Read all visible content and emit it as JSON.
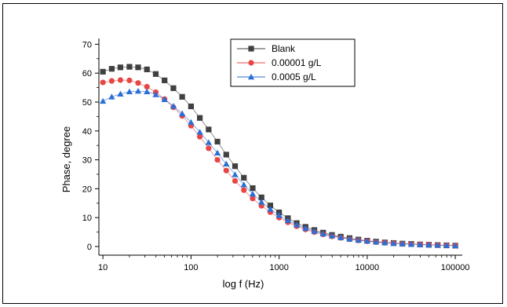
{
  "chart_data": {
    "type": "scatter",
    "xlabel": "log f (Hz)",
    "ylabel": "Phase, degree",
    "x_scale": "log",
    "xlim": [
      9,
      120000
    ],
    "ylim": [
      -3,
      72
    ],
    "x_ticks": [
      10,
      100,
      1000,
      10000,
      100000
    ],
    "x_tick_labels": [
      "10",
      "100",
      "1000",
      "10000",
      "100000"
    ],
    "y_ticks": [
      0,
      10,
      20,
      30,
      40,
      50,
      60,
      70
    ],
    "y_tick_labels": [
      "0",
      "10",
      "20",
      "30",
      "40",
      "50",
      "60",
      "70"
    ],
    "grid": false,
    "legend_position": "top-center",
    "x": [
      10,
      12.6,
      15.8,
      20,
      25.1,
      31.6,
      39.8,
      50.1,
      63.1,
      79.4,
      100,
      125.9,
      158.5,
      199.5,
      251.2,
      316.2,
      398.1,
      501.2,
      631,
      794.3,
      1000,
      1258.9,
      1584.9,
      1995.3,
      2511.9,
      3162.3,
      3981.1,
      5011.9,
      6309.6,
      7943.3,
      10000,
      12589,
      15849,
      19953,
      25119,
      31623,
      39811,
      50119,
      63096,
      79433,
      100000
    ],
    "series": [
      {
        "name": "Blank",
        "color": "#404040",
        "marker": "square",
        "values": [
          60.5,
          61.5,
          62,
          62.2,
          62,
          61.3,
          59.7,
          57.5,
          54.8,
          51.8,
          48.5,
          44.5,
          40.5,
          36.3,
          31.8,
          27.8,
          23.8,
          20.2,
          17,
          14.2,
          11.8,
          9.8,
          8.1,
          6.8,
          5.7,
          4.8,
          4,
          3.4,
          2.9,
          2.4,
          2,
          1.7,
          1.4,
          1.2,
          1,
          0.9,
          0.7,
          0.6,
          0.5,
          0.4,
          0.3
        ]
      },
      {
        "name": "0.00001 g/L",
        "color": "#e84545",
        "marker": "circle",
        "values": [
          56.8,
          57.3,
          57.6,
          57.5,
          56.6,
          55.3,
          53.4,
          51,
          48.2,
          45.2,
          41.8,
          38,
          34,
          30,
          26.3,
          22.7,
          19.5,
          16.6,
          14.1,
          11.9,
          10,
          8.4,
          7,
          5.9,
          5,
          4.2,
          3.5,
          3,
          2.5,
          2.1,
          1.8,
          1.5,
          1.3,
          1.1,
          0.9,
          0.8,
          0.7,
          0.6,
          0.5,
          0.4,
          0.3
        ]
      },
      {
        "name": "0.0005 g/L",
        "color": "#2a6fd6",
        "marker": "triangle",
        "values": [
          50.3,
          51.8,
          52.8,
          53.6,
          53.8,
          53.6,
          52.6,
          50.9,
          48.6,
          46,
          43,
          39.6,
          36,
          32.4,
          28.6,
          24.9,
          21.4,
          18.2,
          15.4,
          12.9,
          10.8,
          9,
          7.5,
          6.3,
          5.3,
          4.4,
          3.7,
          3.1,
          2.6,
          2.2,
          1.9,
          1.6,
          1.3,
          1.1,
          1,
          0.8,
          0.7,
          0.6,
          0.5,
          0.4,
          0.3
        ]
      }
    ]
  }
}
